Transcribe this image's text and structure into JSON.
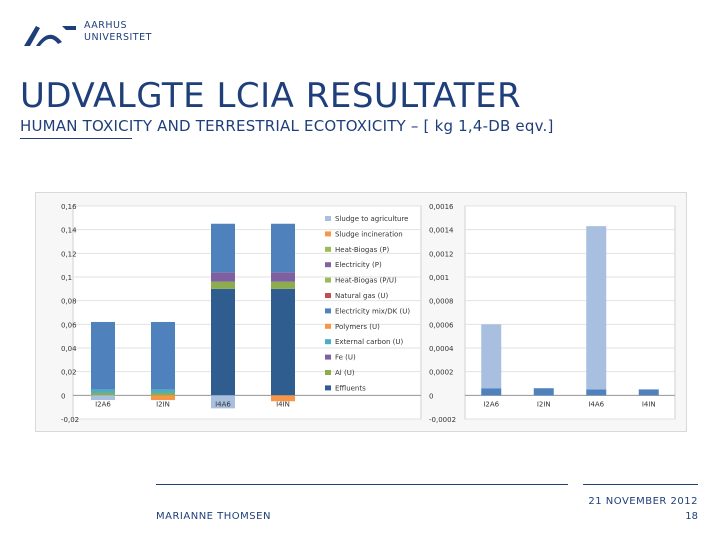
{
  "header": {
    "uni_line1": "AARHUS",
    "uni_line2": "UNIVERSITET",
    "title": "UDVALGTE LCIA RESULTATER",
    "subtitle": "HUMAN TOXICITY AND TERRESTRIAL ECOTOXICITY – [  kg 1,4-DB eqv.]"
  },
  "footer": {
    "author": "MARIANNE THOMSEN",
    "date": "21 NOVEMBER 2012",
    "page": "18"
  },
  "colors": {
    "brand": "#1f3f7a",
    "Sludge to agriculture": "#a9bfe0",
    "Sludge incineration": "#f79646",
    "Heat-Biogas (P)": "#9bbb59",
    "Electricity (P)": "#8064a2",
    "Heat-Biogas (P/U)": "#9bbb59",
    "Natural gas (U)": "#c0504d",
    "Electricity mix/DK (U)": "#4f81bd",
    "Polymers (U)": "#f79646",
    "External carbon (U)": "#4bacc6",
    "Fe (U)": "#7e5fa0",
    "Al (U)": "#8cac4d",
    "Effluents": "#2f5d8f"
  },
  "chart_data": [
    {
      "type": "bar",
      "stacked": true,
      "categories": [
        "I2A6",
        "I2IN",
        "I4A6",
        "I4IN"
      ],
      "yticks": [
        "0,16",
        "0,14",
        "0,12",
        "0,1",
        "0,08",
        "0,06",
        "0,04",
        "0,02",
        "0",
        "-0,02"
      ],
      "ylim": [
        -0.02,
        0.16
      ],
      "legend_position": "right",
      "series": [
        {
          "name": "Effluents",
          "values": [
            0.0,
            0.0,
            0.09,
            0.09
          ]
        },
        {
          "name": "Al (U)",
          "values": [
            0.002,
            0.002,
            0.006,
            0.006
          ]
        },
        {
          "name": "Fe (U)",
          "values": [
            0.0,
            0.0,
            0.008,
            0.008
          ]
        },
        {
          "name": "External carbon (U)",
          "values": [
            0.003,
            0.003,
            0.0,
            0.0
          ]
        },
        {
          "name": "Polymers (U)",
          "values": [
            0.0,
            -0.004,
            0.0,
            -0.005
          ]
        },
        {
          "name": "Electricity mix/DK (U)",
          "values": [
            0.057,
            0.057,
            0.041,
            0.041
          ]
        },
        {
          "name": "Natural gas (U)",
          "values": [
            0.0,
            0.0,
            0.0,
            0.0
          ]
        },
        {
          "name": "Heat-Biogas (P/U)",
          "values": [
            0.0,
            0.0,
            0.0,
            0.0
          ]
        },
        {
          "name": "Electricity (P)",
          "values": [
            0.0,
            0.0,
            0.0,
            0.0
          ]
        },
        {
          "name": "Heat-Biogas (P)",
          "values": [
            0.0,
            0.0,
            0.0,
            0.0
          ]
        },
        {
          "name": "Sludge incineration",
          "values": [
            0.0,
            0.0,
            0.0,
            0.0
          ]
        },
        {
          "name": "Sludge to agriculture",
          "values": [
            -0.004,
            0.0,
            -0.011,
            0.0
          ]
        }
      ]
    },
    {
      "type": "bar",
      "stacked": true,
      "categories": [
        "I2A6",
        "I2IN",
        "I4A6",
        "I4IN"
      ],
      "yticks": [
        "0,0016",
        "0,0014",
        "0,0012",
        "0,001",
        "0,0008",
        "0,0006",
        "0,0004",
        "0,0002",
        "0",
        "-0,0002"
      ],
      "ylim": [
        -0.0002,
        0.0016
      ],
      "series": [
        {
          "name": "Electricity mix/DK (U)",
          "values": [
            6e-05,
            6e-05,
            5e-05,
            5e-05
          ]
        },
        {
          "name": "Sludge to agriculture",
          "values": [
            0.00054,
            0.0,
            0.00138,
            0.0
          ]
        }
      ]
    }
  ]
}
